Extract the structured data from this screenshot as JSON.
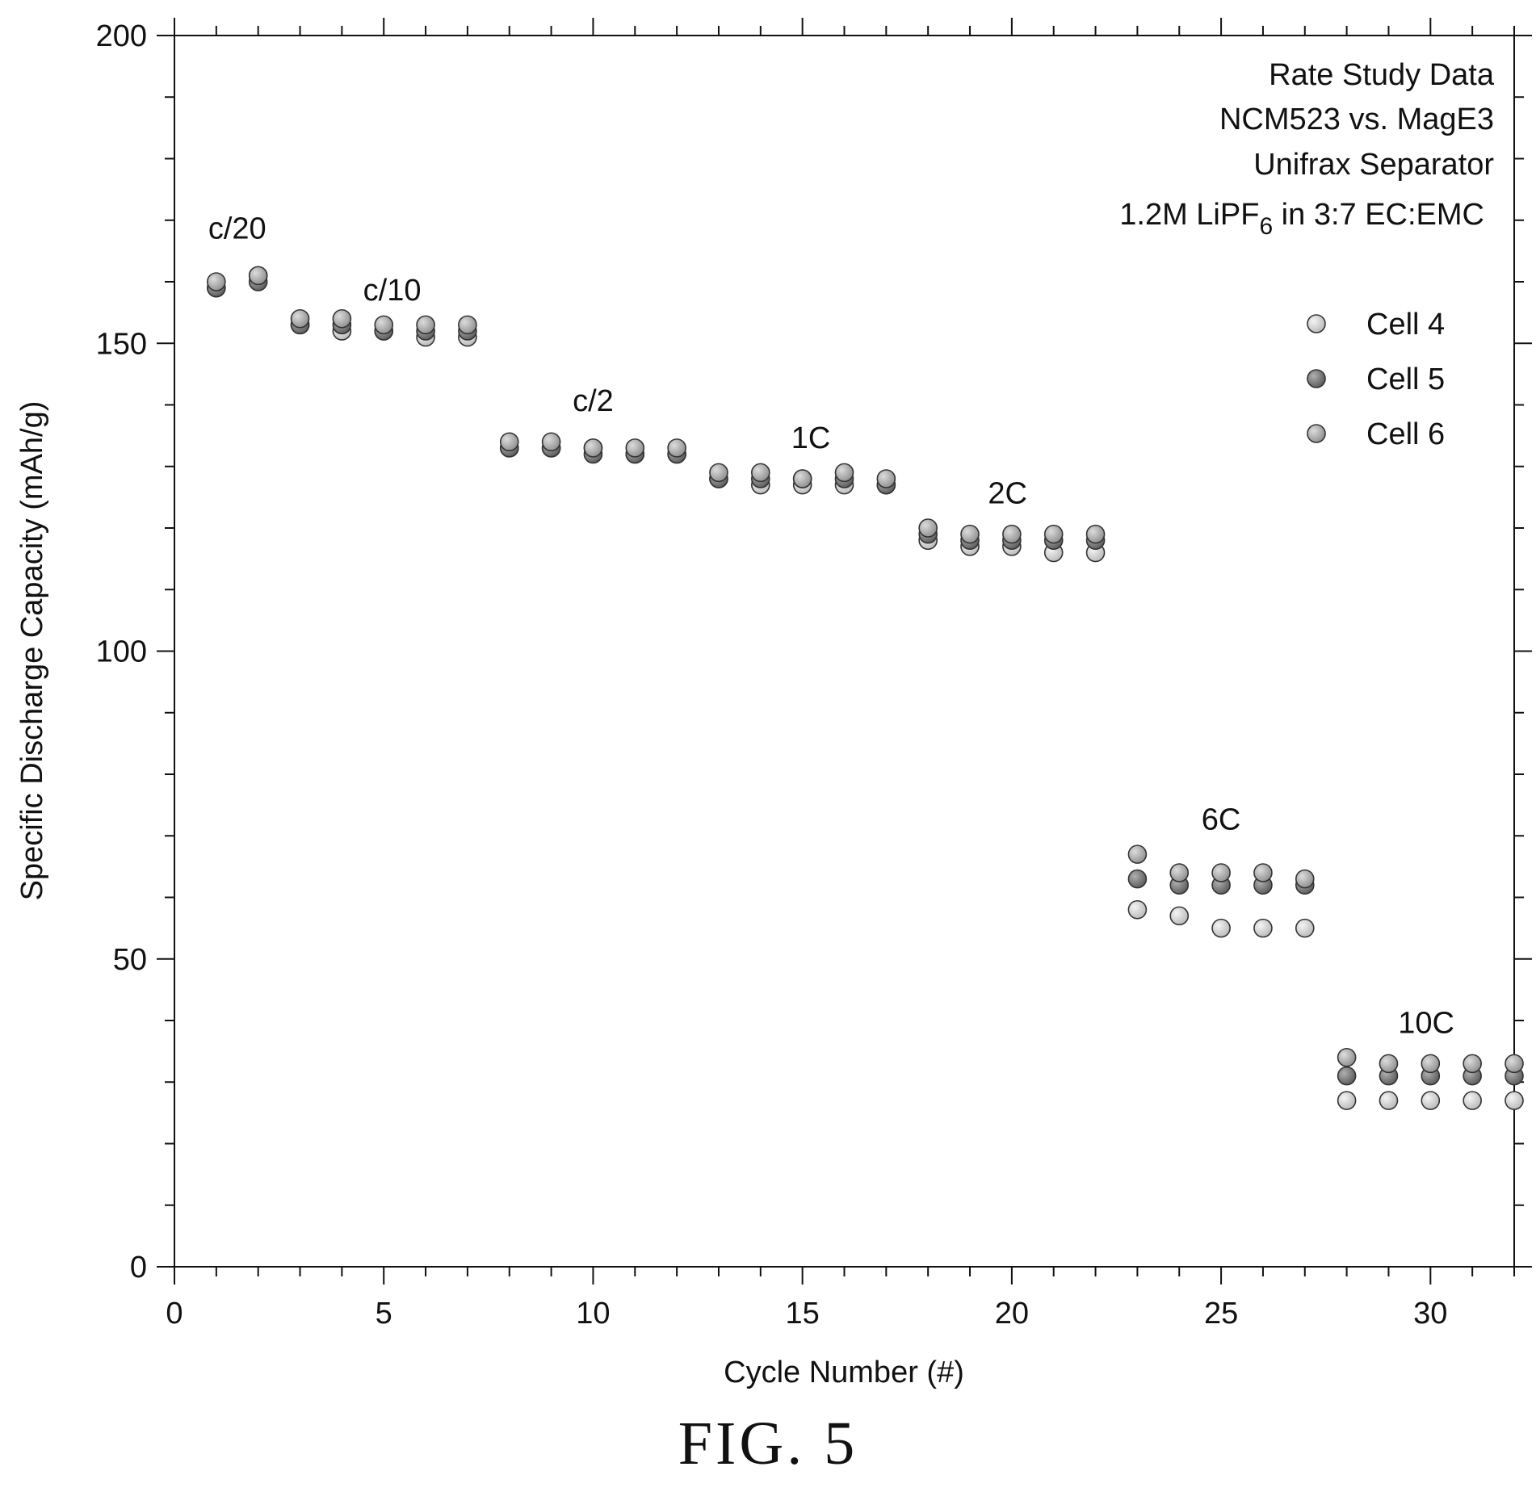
{
  "caption": "FIG. 5",
  "chart_data": {
    "type": "scatter",
    "title": "",
    "xlabel": "Cycle Number (#)",
    "ylabel": "Specific Discharge Capacity (mAh/g)",
    "xlim": [
      0,
      32
    ],
    "ylim": [
      0,
      200
    ],
    "xticks": [
      0,
      5,
      10,
      15,
      20,
      25,
      30
    ],
    "yticks": [
      0,
      50,
      100,
      150,
      200
    ],
    "grid": false,
    "legend_position": "upper-right",
    "annotation_lines": [
      "Rate Study Data",
      "NCM523 vs. MagE3",
      "Unifrax Separator"
    ],
    "electrolyte_note": {
      "prefix": "1.2M LiPF",
      "subscript": "6",
      "suffix": " in 3:7 EC:EMC"
    },
    "rate_labels": [
      {
        "text": "c/20",
        "x": 1.5,
        "y": 167
      },
      {
        "text": "c/10",
        "x": 5.2,
        "y": 157
      },
      {
        "text": "c/2",
        "x": 10.0,
        "y": 139
      },
      {
        "text": "1C",
        "x": 15.2,
        "y": 133
      },
      {
        "text": "2C",
        "x": 19.9,
        "y": 124
      },
      {
        "text": "6C",
        "x": 25.0,
        "y": 71
      },
      {
        "text": "10C",
        "x": 29.9,
        "y": 38
      }
    ],
    "x": [
      1,
      2,
      3,
      4,
      5,
      6,
      7,
      8,
      9,
      10,
      11,
      12,
      13,
      14,
      15,
      16,
      17,
      18,
      19,
      20,
      21,
      22,
      23,
      24,
      25,
      26,
      27,
      28,
      29,
      30,
      31,
      32
    ],
    "series": [
      {
        "name": "Cell 4",
        "color": "#c9c9c9",
        "values": [
          159,
          161,
          153,
          152,
          152,
          151,
          151,
          133,
          133,
          133,
          132,
          132,
          128,
          127,
          127,
          127,
          127,
          118,
          117,
          117,
          116,
          116,
          58,
          57,
          55,
          55,
          55,
          27,
          27,
          27,
          27,
          27
        ]
      },
      {
        "name": "Cell 5",
        "color": "#7c7c7c",
        "values": [
          159,
          160,
          153,
          153,
          152,
          152,
          152,
          133,
          133,
          132,
          132,
          132,
          128,
          128,
          128,
          128,
          127,
          119,
          118,
          118,
          118,
          118,
          63,
          62,
          62,
          62,
          62,
          31,
          31,
          31,
          31,
          31
        ]
      },
      {
        "name": "Cell 6",
        "color": "#a9a9a9",
        "values": [
          160,
          161,
          154,
          154,
          153,
          153,
          153,
          134,
          134,
          133,
          133,
          133,
          129,
          129,
          128,
          129,
          128,
          120,
          119,
          119,
          119,
          119,
          67,
          64,
          64,
          64,
          63,
          34,
          33,
          33,
          33,
          33
        ]
      }
    ]
  }
}
